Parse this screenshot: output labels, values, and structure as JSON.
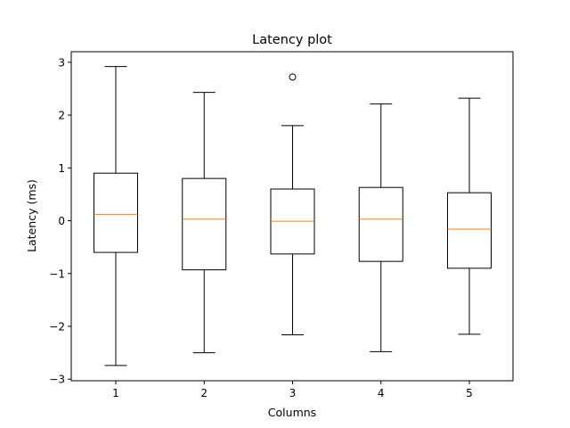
{
  "chart_data": {
    "type": "boxplot",
    "title": "Latency plot",
    "xlabel": "Columns",
    "ylabel": "Latency (ms)",
    "ylim": [
      -3.03,
      3.2
    ],
    "yticks": [
      -3,
      -2,
      -1,
      0,
      1,
      2,
      3
    ],
    "categories": [
      "1",
      "2",
      "3",
      "4",
      "5"
    ],
    "boxes": [
      {
        "whisker_low": -2.74,
        "q1": -0.6,
        "median": 0.12,
        "q3": 0.9,
        "whisker_high": 2.92,
        "outliers": []
      },
      {
        "whisker_low": -2.5,
        "q1": -0.93,
        "median": 0.03,
        "q3": 0.8,
        "whisker_high": 2.43,
        "outliers": []
      },
      {
        "whisker_low": -2.16,
        "q1": -0.63,
        "median": -0.01,
        "q3": 0.6,
        "whisker_high": 1.8,
        "outliers": [
          2.72
        ]
      },
      {
        "whisker_low": -2.48,
        "q1": -0.77,
        "median": 0.03,
        "q3": 0.63,
        "whisker_high": 2.21,
        "outliers": []
      },
      {
        "whisker_low": -2.15,
        "q1": -0.9,
        "median": -0.16,
        "q3": 0.53,
        "whisker_high": 2.32,
        "outliers": []
      }
    ],
    "colors": {
      "box": "#000000",
      "median": "#ff7f0e",
      "background": "#ffffff"
    },
    "grid": false,
    "legend": "none"
  }
}
